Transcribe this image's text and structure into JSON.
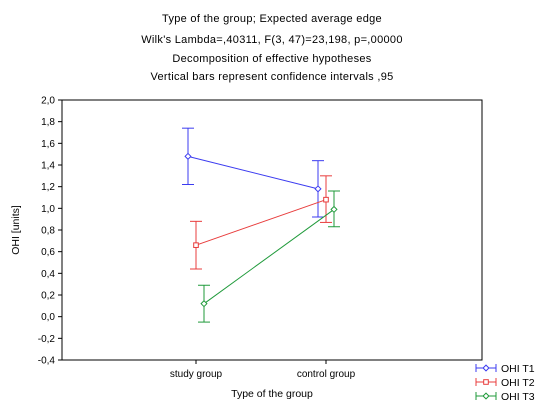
{
  "chart_data": {
    "type": "line",
    "title_lines": [
      "Type of the group; Expected average edge",
      "Wilk's Lambda=,40311, F(3, 47)=23,198, p=,00000",
      "Decomposition of effective hypotheses",
      "Vertical bars represent confidence intervals ,95"
    ],
    "xlabel": "Type of the group",
    "ylabel": "OHI [units]",
    "categories": [
      "study group",
      "control group"
    ],
    "ylim": [
      -0.4,
      2.0
    ],
    "yticks": [
      -0.4,
      -0.2,
      0.0,
      0.2,
      0.4,
      0.6,
      0.8,
      1.0,
      1.2,
      1.4,
      1.6,
      1.8,
      2.0
    ],
    "ytick_labels": [
      "-0,4",
      "-0,2",
      "0,0",
      "0,2",
      "0,4",
      "0,6",
      "0,8",
      "1,0",
      "1,2",
      "1,4",
      "1,6",
      "1,8",
      "2,0"
    ],
    "grid": false,
    "legend_position": "bottom-right",
    "series": [
      {
        "name": "OHI T1",
        "color": "#3b3bf0",
        "marker": "diamond",
        "values": [
          1.48,
          1.18
        ],
        "lower": [
          1.22,
          0.92
        ],
        "upper": [
          1.74,
          1.44
        ]
      },
      {
        "name": "OHI T2",
        "color": "#e83c3c",
        "marker": "square",
        "values": [
          0.66,
          1.08
        ],
        "lower": [
          0.44,
          0.87
        ],
        "upper": [
          0.88,
          1.3
        ]
      },
      {
        "name": "OHI T3",
        "color": "#1f9a3a",
        "marker": "diamond",
        "values": [
          0.12,
          0.99
        ],
        "lower": [
          -0.05,
          0.83
        ],
        "upper": [
          0.29,
          1.16
        ]
      }
    ]
  }
}
